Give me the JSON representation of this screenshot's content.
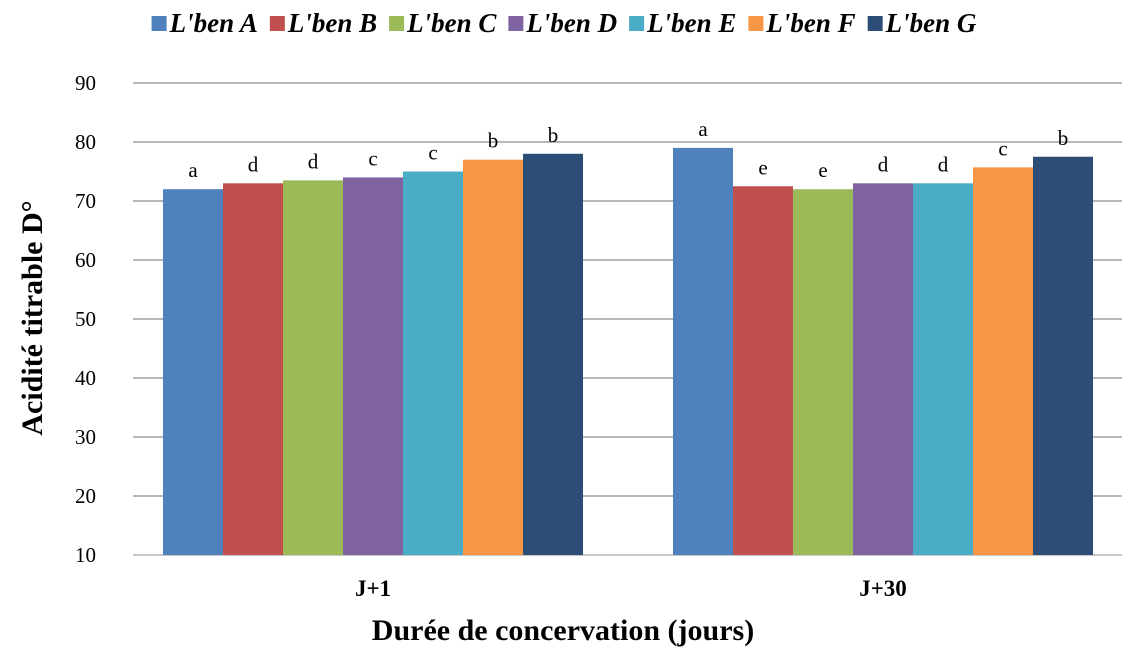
{
  "chart_data": {
    "type": "bar",
    "categories": [
      "J+1",
      "J+30"
    ],
    "series": [
      {
        "name": "L'ben A",
        "color": "#4F81BD",
        "values": [
          72,
          79
        ],
        "letters": [
          "a",
          "a"
        ]
      },
      {
        "name": "L'ben B",
        "color": "#C0504D",
        "values": [
          73,
          72.5
        ],
        "letters": [
          "d",
          "e"
        ]
      },
      {
        "name": "L'ben C",
        "color": "#9BBB59",
        "values": [
          73.5,
          72
        ],
        "letters": [
          "d",
          "e"
        ]
      },
      {
        "name": "L'ben D",
        "color": "#8064A2",
        "values": [
          74,
          73
        ],
        "letters": [
          "c",
          "d"
        ]
      },
      {
        "name": "L'ben E",
        "color": "#4BACC6",
        "values": [
          75,
          73
        ],
        "letters": [
          "c",
          "d"
        ]
      },
      {
        "name": "L'ben F",
        "color": "#F79646",
        "values": [
          77,
          75.7
        ],
        "letters": [
          "b",
          "c"
        ]
      },
      {
        "name": "L'ben G",
        "color": "#2C4D75",
        "values": [
          78,
          77.5
        ],
        "letters": [
          "b",
          "b"
        ]
      }
    ],
    "xlabel": "Durée de concervation (jours)",
    "ylabel": "Acidité titrable  D°",
    "ylim": [
      10,
      90
    ],
    "yticks": [
      "10",
      "20",
      "30",
      "40",
      "50",
      "60",
      "70",
      "80",
      "90"
    ],
    "grid": true,
    "legend_position": "top"
  }
}
